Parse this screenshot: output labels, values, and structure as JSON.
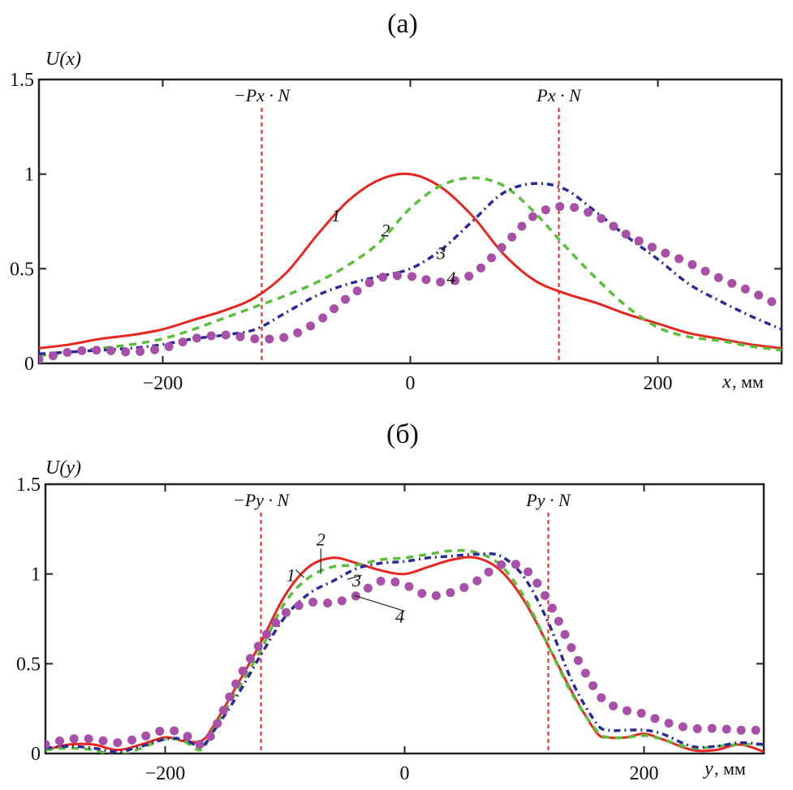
{
  "chart_data": [
    {
      "type": "line",
      "panel": "a",
      "title": "(а)",
      "ylabel": "U(x)",
      "xlabel": "x, мм",
      "xlabel_var": "x",
      "xlabel_unit": ", мм",
      "xlim": [
        -300,
        300
      ],
      "ylim": [
        0,
        1.5
      ],
      "xticks": [
        -200,
        0,
        200
      ],
      "xtick_labels": [
        "−200",
        "0",
        "200"
      ],
      "yticks": [
        0,
        0.5,
        1,
        1.5
      ],
      "ytick_labels": [
        "0",
        "0.5",
        "1",
        "1.5"
      ],
      "grid": false,
      "legend": "none (curves labeled inline 1-4)",
      "markers": [
        {
          "x": -120,
          "label": "−Px · N",
          "color": "#e8251f"
        },
        {
          "x": 120,
          "label": "Px · N",
          "color": "#e8251f"
        }
      ],
      "x": [
        -300,
        -275,
        -250,
        -225,
        -200,
        -175,
        -150,
        -125,
        -100,
        -75,
        -50,
        -25,
        0,
        25,
        50,
        75,
        100,
        125,
        150,
        175,
        200,
        225,
        250,
        275,
        300
      ],
      "series": [
        {
          "name": "1",
          "style": "solid",
          "color": "#e8251f",
          "values": [
            0.08,
            0.1,
            0.13,
            0.15,
            0.18,
            0.23,
            0.28,
            0.35,
            0.48,
            0.68,
            0.86,
            0.97,
            1.0,
            0.93,
            0.78,
            0.58,
            0.44,
            0.37,
            0.32,
            0.26,
            0.21,
            0.16,
            0.13,
            0.1,
            0.08
          ],
          "label_at": [
            -60,
            0.75
          ]
        },
        {
          "name": "2",
          "style": "dashed",
          "color": "#5cbf3c",
          "values": [
            0.04,
            0.06,
            0.08,
            0.1,
            0.13,
            0.18,
            0.24,
            0.3,
            0.36,
            0.43,
            0.52,
            0.64,
            0.82,
            0.94,
            0.98,
            0.94,
            0.8,
            0.62,
            0.45,
            0.3,
            0.19,
            0.14,
            0.12,
            0.09,
            0.07
          ],
          "label_at": [
            -20,
            0.67
          ]
        },
        {
          "name": "3",
          "style": "dash-dot",
          "color": "#2a2a9a",
          "values": [
            0.05,
            0.06,
            0.07,
            0.08,
            0.1,
            0.13,
            0.15,
            0.18,
            0.27,
            0.36,
            0.42,
            0.46,
            0.5,
            0.6,
            0.75,
            0.9,
            0.95,
            0.92,
            0.8,
            0.67,
            0.55,
            0.42,
            0.33,
            0.25,
            0.18
          ],
          "label_at": [
            25,
            0.55
          ]
        },
        {
          "name": "4",
          "style": "dotted-circles",
          "color": "#a850a8",
          "values": [
            0.02,
            0.06,
            0.07,
            0.06,
            0.08,
            0.13,
            0.15,
            0.13,
            0.14,
            0.22,
            0.35,
            0.45,
            0.46,
            0.43,
            0.47,
            0.62,
            0.78,
            0.83,
            0.78,
            0.68,
            0.6,
            0.53,
            0.45,
            0.38,
            0.3
          ],
          "label_at": [
            33,
            0.42
          ]
        }
      ]
    },
    {
      "type": "line",
      "panel": "b",
      "title": "(б)",
      "ylabel": "U(y)",
      "xlabel": "y, мм",
      "xlabel_var": "y",
      "xlabel_unit": ", мм",
      "xlim": [
        -300,
        300
      ],
      "ylim": [
        0,
        1.5
      ],
      "xticks": [
        -200,
        0,
        200
      ],
      "xtick_labels": [
        "−200",
        "0",
        "200"
      ],
      "yticks": [
        0,
        0.5,
        1,
        1.5
      ],
      "ytick_labels": [
        "0",
        "0.5",
        "1",
        "1.5"
      ],
      "grid": false,
      "legend": "none (curves labeled inline 1-4 with leader lines)",
      "markers": [
        {
          "x": -120,
          "label": "−Py · N",
          "color": "#e8251f"
        },
        {
          "x": 120,
          "label": "Py · N",
          "color": "#e8251f"
        }
      ],
      "x": [
        -300,
        -280,
        -260,
        -240,
        -220,
        -200,
        -185,
        -170,
        -160,
        -140,
        -120,
        -100,
        -80,
        -60,
        -40,
        -20,
        0,
        20,
        40,
        60,
        80,
        100,
        120,
        140,
        160,
        170,
        185,
        200,
        215,
        240,
        260,
        280,
        300
      ],
      "series": [
        {
          "name": "1",
          "style": "solid",
          "color": "#e8251f",
          "values": [
            0.02,
            0.05,
            0.05,
            0.02,
            0.05,
            0.09,
            0.07,
            0.07,
            0.15,
            0.38,
            0.62,
            0.88,
            1.04,
            1.09,
            1.06,
            1.02,
            1.0,
            1.04,
            1.08,
            1.09,
            1.02,
            0.85,
            0.6,
            0.34,
            0.12,
            0.09,
            0.09,
            0.11,
            0.08,
            0.02,
            0.02,
            0.05,
            0.01
          ],
          "label_at": [
            -95,
            0.96
          ],
          "leader_to": [
            -84,
            0.98
          ]
        },
        {
          "name": "2",
          "style": "dashed",
          "color": "#5cbf3c",
          "values": [
            0.02,
            0.03,
            0.02,
            -0.01,
            0.03,
            0.08,
            0.07,
            0.02,
            0.13,
            0.35,
            0.58,
            0.84,
            0.98,
            1.04,
            1.05,
            1.08,
            1.09,
            1.11,
            1.13,
            1.12,
            1.05,
            0.87,
            0.6,
            0.33,
            0.13,
            0.09,
            0.09,
            0.1,
            0.08,
            0.03,
            0.04,
            0.05,
            0.05
          ],
          "label_at": [
            -70,
            1.16
          ],
          "leader_to": [
            -70,
            1.0
          ]
        },
        {
          "name": "3",
          "style": "dash-dot",
          "color": "#2a2a9a",
          "values": [
            0.03,
            0.04,
            0.03,
            0.01,
            0.04,
            0.08,
            0.08,
            0.04,
            0.12,
            0.32,
            0.55,
            0.76,
            0.89,
            0.96,
            1.03,
            1.06,
            1.07,
            1.09,
            1.1,
            1.11,
            1.1,
            0.98,
            0.73,
            0.4,
            0.17,
            0.13,
            0.13,
            0.13,
            0.11,
            0.04,
            0.04,
            0.06,
            0.05
          ],
          "label_at": [
            -40,
            0.93
          ],
          "leader_to": [
            -48,
            0.97
          ]
        },
        {
          "name": "4",
          "style": "dotted-circles",
          "color": "#a850a8",
          "values": [
            0.05,
            0.08,
            0.08,
            0.06,
            0.09,
            0.13,
            0.11,
            0.05,
            0.12,
            0.4,
            0.62,
            0.78,
            0.84,
            0.84,
            0.88,
            0.96,
            0.94,
            0.88,
            0.9,
            0.96,
            1.05,
            1.03,
            0.85,
            0.58,
            0.35,
            0.28,
            0.24,
            0.22,
            0.18,
            0.14,
            0.14,
            0.13,
            0.13
          ],
          "label_at": [
            -4,
            0.73
          ],
          "leader_to": [
            -42,
            0.88
          ]
        }
      ]
    }
  ]
}
